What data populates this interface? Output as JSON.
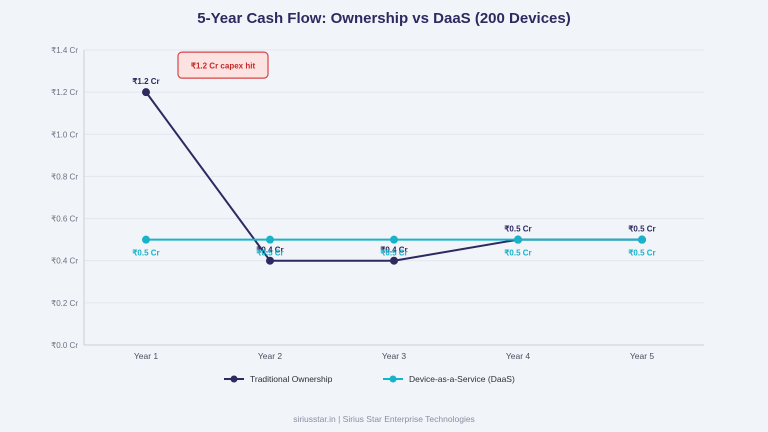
{
  "chart_data": {
    "type": "line",
    "title": "5-Year Cash Flow: Ownership vs DaaS (200 Devices)",
    "categories": [
      "Year 1",
      "Year 2",
      "Year 3",
      "Year 4",
      "Year 5"
    ],
    "series": [
      {
        "name": "Traditional Ownership",
        "color": "#2d2a5f",
        "values": [
          1.2,
          0.4,
          0.4,
          0.5,
          0.5
        ],
        "labels": [
          "₹1.2 Cr",
          "₹0.4 Cr",
          "₹0.4 Cr",
          "₹0.5 Cr",
          "₹0.5 Cr"
        ]
      },
      {
        "name": "Device-as-a-Service (DaaS)",
        "color": "#17b3c9",
        "values": [
          0.5,
          0.5,
          0.5,
          0.5,
          0.5
        ],
        "labels": [
          "₹0.5 Cr",
          "₹0.5 Cr",
          "₹0.5 Cr",
          "₹0.5 Cr",
          "₹0.5 Cr"
        ]
      }
    ],
    "yticks": [
      "₹0.0 Cr",
      "₹0.2 Cr",
      "₹0.4 Cr",
      "₹0.6 Cr",
      "₹0.8 Cr",
      "₹1.0 Cr",
      "₹1.2 Cr",
      "₹1.4 Cr"
    ],
    "ylim": [
      0,
      1.4
    ],
    "xlabel": "",
    "ylabel": "",
    "grid": true,
    "legend": "bottom",
    "annotation": {
      "text": "₹1.2 Cr capex hit",
      "category": "Year 1",
      "value": 1.2
    }
  },
  "footer": {
    "site": "siriusstar.in",
    "separator": "|",
    "company": "Sirius Star Enterprise Technologies"
  }
}
